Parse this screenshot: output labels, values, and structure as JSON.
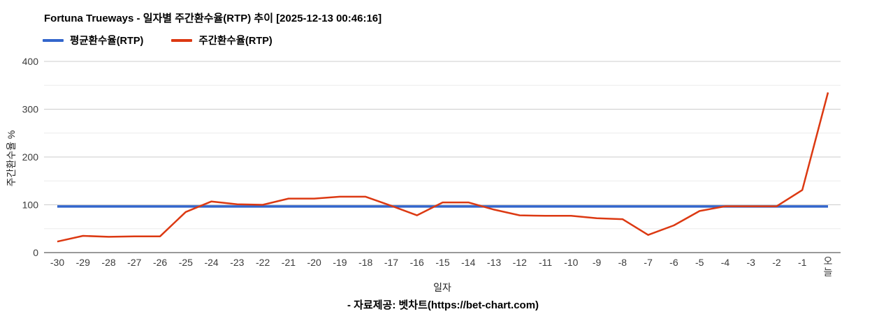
{
  "header": {
    "title": "Fortuna Trueways - 일자별 주간환수율(RTP) 추이 [2025-12-13 00:46:16]"
  },
  "footer": {
    "source": "- 자료제공: 벳차트(https://bet-chart.com)"
  },
  "colors": {
    "average_line": "#3366cc",
    "weekly_line": "#dc3912",
    "major_gridline": "#cccccc",
    "minor_gridline": "#ebebeb",
    "axis_line": "#333333",
    "tick_text": "#3c3c3c"
  },
  "chart_data": {
    "type": "line",
    "title": "Fortuna Trueways - 일자별 주간환수율(RTP) 추이 [2025-12-13 00:46:16]",
    "xlabel": "일자",
    "ylabel": "주간환수율 %",
    "ylim": [
      0,
      400
    ],
    "yticks": [
      0,
      100,
      200,
      300,
      400
    ],
    "minor_grid_interval": 50,
    "grid": true,
    "legend_position": "top-left",
    "categories": [
      "-30",
      "-29",
      "-28",
      "-27",
      "-26",
      "-25",
      "-24",
      "-23",
      "-22",
      "-21",
      "-20",
      "-19",
      "-18",
      "-17",
      "-16",
      "-15",
      "-14",
      "-13",
      "-12",
      "-11",
      "-10",
      "-9",
      "-8",
      "-7",
      "-6",
      "-5",
      "-4",
      "-3",
      "-2",
      "-1",
      "오늘"
    ],
    "series": [
      {
        "name": "평균환수율(RTP)",
        "color": "#3366cc",
        "constant_value": 96.5
      },
      {
        "name": "주간환수율(RTP)",
        "color": "#dc3912",
        "values": [
          23,
          35,
          33,
          34,
          34,
          85,
          107,
          101,
          100,
          113,
          113,
          117,
          117,
          98,
          78,
          105,
          105,
          90,
          78,
          77,
          77,
          72,
          70,
          37,
          57,
          87,
          97,
          97,
          97,
          131,
          335
        ]
      }
    ]
  }
}
